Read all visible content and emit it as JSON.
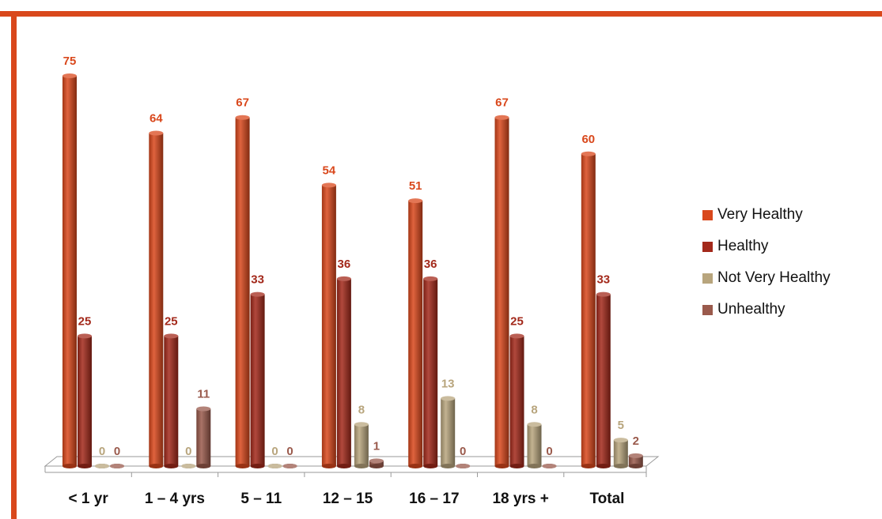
{
  "chart_data": {
    "type": "bar",
    "categories": [
      "< 1 yr",
      "1 – 4 yrs",
      "5 – 11",
      "12 – 15",
      "16 – 17",
      "18 yrs +",
      "Total"
    ],
    "series": [
      {
        "name": "Very Healthy",
        "values": [
          75,
          64,
          67,
          54,
          51,
          67,
          60
        ],
        "color": "#d9481c"
      },
      {
        "name": "Healthy",
        "values": [
          25,
          25,
          33,
          36,
          36,
          25,
          33
        ],
        "color": "#a3291b"
      },
      {
        "name": "Not Very Healthy",
        "values": [
          0,
          0,
          0,
          8,
          13,
          8,
          5
        ],
        "color": "#b8a57d"
      },
      {
        "name": "Unhealthy",
        "values": [
          0,
          11,
          0,
          1,
          0,
          0,
          2
        ],
        "color": "#9a5a4c"
      }
    ],
    "ylim": [
      0,
      80
    ],
    "grid": false,
    "legend_position": "right",
    "data_labels": true,
    "style": "3d-cylinders"
  }
}
